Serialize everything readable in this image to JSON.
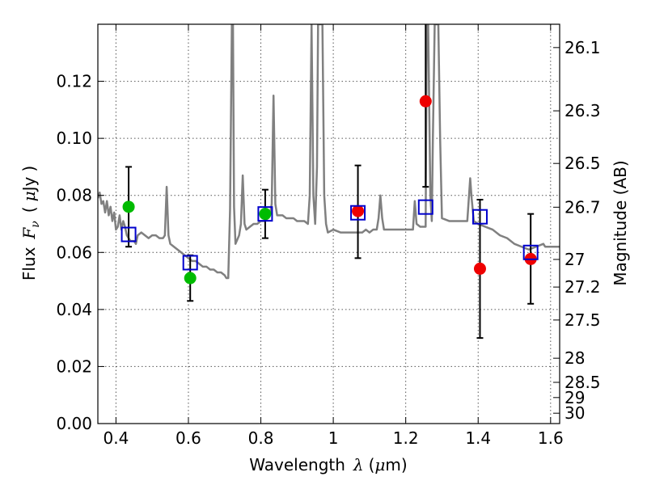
{
  "chart_data": {
    "type": "scatter",
    "xlabel": {
      "prefix": "Wavelength",
      "symbol": "λ",
      "unit_open": "(",
      "unit_mu": "μ",
      "unit_rest": "m)"
    },
    "ylabel": {
      "prefix": "Flux",
      "symbol": "F",
      "subscript": "ν",
      "unit_open": "(",
      "unit_mu": "μ",
      "unit_rest": "Jy",
      "unit_close": ")"
    },
    "y2label": "Magnitude (AB)",
    "xlim": [
      0.35,
      1.625
    ],
    "ylim": [
      0.0,
      0.14
    ],
    "grid": true,
    "x_ticks": [
      {
        "value": 0.4,
        "label": "0.4"
      },
      {
        "value": 0.6,
        "label": "0.6"
      },
      {
        "value": 0.8,
        "label": "0.8"
      },
      {
        "value": 1.0,
        "label": "1"
      },
      {
        "value": 1.2,
        "label": "1.2"
      },
      {
        "value": 1.4,
        "label": "1.4"
      },
      {
        "value": 1.6,
        "label": "1.6"
      }
    ],
    "y_ticks": [
      {
        "value": 0.0,
        "label": "0.00"
      },
      {
        "value": 0.02,
        "label": "0.02"
      },
      {
        "value": 0.04,
        "label": "0.04"
      },
      {
        "value": 0.06,
        "label": "0.06"
      },
      {
        "value": 0.08,
        "label": "0.08"
      },
      {
        "value": 0.1,
        "label": "0.10"
      },
      {
        "value": 0.12,
        "label": "0.12"
      }
    ],
    "mag_ticks": [
      {
        "mag": 26.1,
        "label": "26.1"
      },
      {
        "mag": 26.3,
        "label": "26.3"
      },
      {
        "mag": 26.5,
        "label": "26.5"
      },
      {
        "mag": 26.7,
        "label": "26.7"
      },
      {
        "mag": 27.0,
        "label": "27"
      },
      {
        "mag": 27.2,
        "label": "27.2"
      },
      {
        "mag": 27.5,
        "label": "27.5"
      },
      {
        "mag": 28.0,
        "label": "28"
      },
      {
        "mag": 28.5,
        "label": "28.5"
      },
      {
        "mag": 29.0,
        "label": "29"
      },
      {
        "mag": 30.0,
        "label": "30"
      }
    ],
    "colors": {
      "spectrum": "#808080",
      "green_points": "#00bb00",
      "red_points": "#ee0000",
      "model_squares": "#0000cc",
      "error_bars": "#000000",
      "grid": "#555555"
    },
    "series": [
      {
        "role": "spectrum",
        "style": "line",
        "points": [
          [
            0.35,
            0.079
          ],
          [
            0.355,
            0.081
          ],
          [
            0.36,
            0.077
          ],
          [
            0.365,
            0.078
          ],
          [
            0.37,
            0.074
          ],
          [
            0.375,
            0.078
          ],
          [
            0.38,
            0.073
          ],
          [
            0.385,
            0.076
          ],
          [
            0.39,
            0.071
          ],
          [
            0.395,
            0.074
          ],
          [
            0.4,
            0.068
          ],
          [
            0.405,
            0.069
          ],
          [
            0.41,
            0.073
          ],
          [
            0.415,
            0.068
          ],
          [
            0.42,
            0.071
          ],
          [
            0.425,
            0.069
          ],
          [
            0.43,
            0.066
          ],
          [
            0.44,
            0.064
          ],
          [
            0.45,
            0.064
          ],
          [
            0.455,
            0.063
          ],
          [
            0.46,
            0.066
          ],
          [
            0.47,
            0.067
          ],
          [
            0.48,
            0.066
          ],
          [
            0.49,
            0.065
          ],
          [
            0.5,
            0.066
          ],
          [
            0.51,
            0.066
          ],
          [
            0.52,
            0.065
          ],
          [
            0.53,
            0.065
          ],
          [
            0.535,
            0.066
          ],
          [
            0.54,
            0.083
          ],
          [
            0.545,
            0.066
          ],
          [
            0.55,
            0.063
          ],
          [
            0.56,
            0.062
          ],
          [
            0.57,
            0.061
          ],
          [
            0.58,
            0.06
          ],
          [
            0.59,
            0.059
          ],
          [
            0.6,
            0.058
          ],
          [
            0.61,
            0.057
          ],
          [
            0.62,
            0.057
          ],
          [
            0.63,
            0.056
          ],
          [
            0.64,
            0.055
          ],
          [
            0.65,
            0.055
          ],
          [
            0.66,
            0.054
          ],
          [
            0.67,
            0.054
          ],
          [
            0.68,
            0.053
          ],
          [
            0.69,
            0.053
          ],
          [
            0.7,
            0.052
          ],
          [
            0.705,
            0.051
          ],
          [
            0.71,
            0.051
          ],
          [
            0.715,
            0.075
          ],
          [
            0.72,
            0.14
          ],
          [
            0.723,
            0.14
          ],
          [
            0.726,
            0.076
          ],
          [
            0.73,
            0.063
          ],
          [
            0.74,
            0.066
          ],
          [
            0.745,
            0.07
          ],
          [
            0.75,
            0.087
          ],
          [
            0.755,
            0.07
          ],
          [
            0.76,
            0.068
          ],
          [
            0.77,
            0.069
          ],
          [
            0.78,
            0.07
          ],
          [
            0.79,
            0.07
          ],
          [
            0.8,
            0.071
          ],
          [
            0.81,
            0.071
          ],
          [
            0.82,
            0.072
          ],
          [
            0.825,
            0.073
          ],
          [
            0.83,
            0.077
          ],
          [
            0.835,
            0.115
          ],
          [
            0.84,
            0.077
          ],
          [
            0.845,
            0.073
          ],
          [
            0.85,
            0.073
          ],
          [
            0.86,
            0.073
          ],
          [
            0.87,
            0.072
          ],
          [
            0.88,
            0.072
          ],
          [
            0.89,
            0.072
          ],
          [
            0.9,
            0.071
          ],
          [
            0.91,
            0.071
          ],
          [
            0.92,
            0.071
          ],
          [
            0.93,
            0.07
          ],
          [
            0.935,
            0.08
          ],
          [
            0.94,
            0.14
          ],
          [
            0.945,
            0.08
          ],
          [
            0.95,
            0.07
          ],
          [
            0.955,
            0.09
          ],
          [
            0.958,
            0.14
          ],
          [
            0.962,
            0.14
          ],
          [
            0.966,
            0.14
          ],
          [
            0.97,
            0.14
          ],
          [
            0.975,
            0.08
          ],
          [
            0.98,
            0.07
          ],
          [
            0.985,
            0.067
          ],
          [
            1.0,
            0.068
          ],
          [
            1.02,
            0.067
          ],
          [
            1.04,
            0.067
          ],
          [
            1.06,
            0.067
          ],
          [
            1.08,
            0.067
          ],
          [
            1.09,
            0.068
          ],
          [
            1.1,
            0.067
          ],
          [
            1.11,
            0.068
          ],
          [
            1.12,
            0.068
          ],
          [
            1.125,
            0.072
          ],
          [
            1.13,
            0.08
          ],
          [
            1.135,
            0.072
          ],
          [
            1.14,
            0.068
          ],
          [
            1.16,
            0.068
          ],
          [
            1.18,
            0.068
          ],
          [
            1.2,
            0.068
          ],
          [
            1.21,
            0.068
          ],
          [
            1.22,
            0.068
          ],
          [
            1.225,
            0.078
          ],
          [
            1.23,
            0.07
          ],
          [
            1.24,
            0.069
          ],
          [
            1.255,
            0.069
          ],
          [
            1.258,
            0.14
          ],
          [
            1.262,
            0.14
          ],
          [
            1.268,
            0.08
          ],
          [
            1.272,
            0.071
          ],
          [
            1.275,
            0.1
          ],
          [
            1.28,
            0.14
          ],
          [
            1.29,
            0.14
          ],
          [
            1.295,
            0.1
          ],
          [
            1.3,
            0.072
          ],
          [
            1.32,
            0.071
          ],
          [
            1.34,
            0.071
          ],
          [
            1.36,
            0.071
          ],
          [
            1.37,
            0.071
          ],
          [
            1.378,
            0.086
          ],
          [
            1.382,
            0.079
          ],
          [
            1.388,
            0.071
          ],
          [
            1.4,
            0.07
          ],
          [
            1.42,
            0.069
          ],
          [
            1.44,
            0.068
          ],
          [
            1.46,
            0.066
          ],
          [
            1.48,
            0.065
          ],
          [
            1.5,
            0.063
          ],
          [
            1.52,
            0.062
          ],
          [
            1.54,
            0.061
          ],
          [
            1.56,
            0.062
          ],
          [
            1.58,
            0.063
          ],
          [
            1.585,
            0.062
          ],
          [
            1.59,
            0.062
          ],
          [
            1.6,
            0.062
          ],
          [
            1.625,
            0.062
          ]
        ]
      },
      {
        "role": "model",
        "style": "open-square",
        "points": [
          {
            "x": 0.435,
            "y": 0.0663
          },
          {
            "x": 0.605,
            "y": 0.0564
          },
          {
            "x": 0.812,
            "y": 0.0735
          },
          {
            "x": 1.068,
            "y": 0.0739
          },
          {
            "x": 1.255,
            "y": 0.0759
          },
          {
            "x": 1.405,
            "y": 0.0725
          },
          {
            "x": 1.545,
            "y": 0.06
          }
        ]
      },
      {
        "role": "green",
        "style": "filled-circle",
        "points": [
          {
            "x": 0.435,
            "y": 0.076,
            "err_low": 0.062,
            "err_high": 0.09
          },
          {
            "x": 0.605,
            "y": 0.051,
            "err_low": 0.043,
            "err_high": 0.059
          },
          {
            "x": 0.812,
            "y": 0.0735,
            "err_low": 0.065,
            "err_high": 0.082
          }
        ]
      },
      {
        "role": "red",
        "style": "filled-circle",
        "points": [
          {
            "x": 1.068,
            "y": 0.0745,
            "err_low": 0.058,
            "err_high": 0.0905
          },
          {
            "x": 1.255,
            "y": 0.113,
            "err_low": 0.083,
            "err_high": 0.14
          },
          {
            "x": 1.405,
            "y": 0.0543,
            "err_low": 0.03,
            "err_high": 0.0785
          },
          {
            "x": 1.545,
            "y": 0.0577,
            "err_low": 0.042,
            "err_high": 0.0735
          }
        ]
      }
    ]
  }
}
